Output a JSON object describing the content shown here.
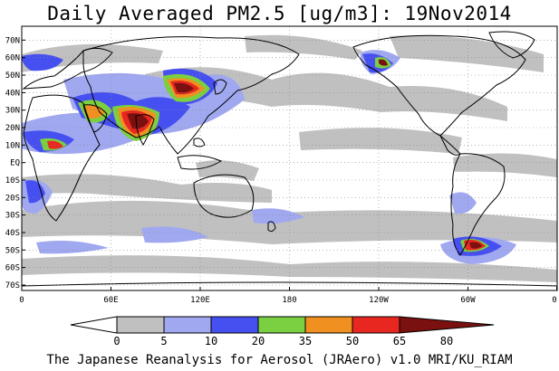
{
  "title": "Daily Averaged PM2.5 [ug/m3]: 19Nov2014",
  "lat_labels": [
    "70N",
    "60N",
    "50N",
    "40N",
    "30N",
    "20N",
    "10N",
    "EQ",
    "10S",
    "20S",
    "30S",
    "40S",
    "50S",
    "60S",
    "70S"
  ],
  "lon_labels": [
    "0",
    "60E",
    "120E",
    "180",
    "120W",
    "60W",
    "0"
  ],
  "colorbar": {
    "levels": [
      "0",
      "5",
      "10",
      "20",
      "35",
      "50",
      "65",
      "80"
    ],
    "colors": [
      "#ffffff",
      "#c0c0c0",
      "#a0a8f0",
      "#4650f0",
      "#7ad040",
      "#f09020",
      "#e82820",
      "#7a1010"
    ]
  },
  "footer": "The Japanese Reanalysis for Aerosol (JRAero) v1.0 MRI/KU_RIAM"
}
